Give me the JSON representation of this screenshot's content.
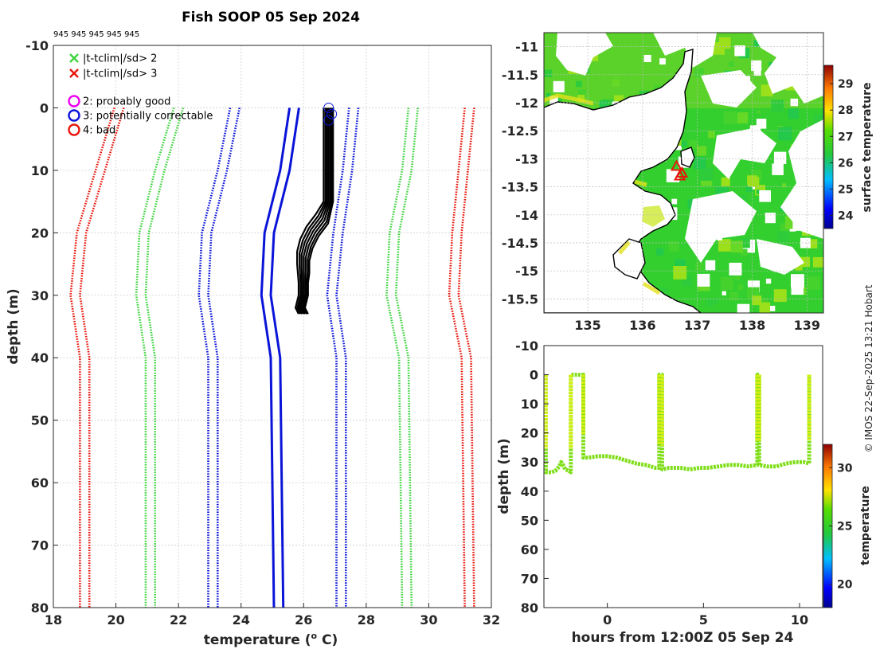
{
  "title": "Fish SOOP 05 Sep 2024",
  "probe_ids": "945 945 945 945 945",
  "copyright": "© IMOS 22-Sep-2025 13:21 Hobart",
  "colors": {
    "red": "#e8150a",
    "green": "#3cd43c",
    "blue": "#0a14d8",
    "black": "#000000",
    "magenta": "#ee00ee"
  },
  "legend": [
    {
      "marker": "x",
      "color": "#3cd43c",
      "label": "|t-tclim|/sd> 2"
    },
    {
      "marker": "x",
      "color": "#e8150a",
      "label": "|t-tclim|/sd> 3"
    },
    {
      "marker": "o",
      "color": "#ee00ee",
      "label": "2: probably good"
    },
    {
      "marker": "o",
      "color": "#0a14d8",
      "label": "3: potentially correctable"
    },
    {
      "marker": "o",
      "color": "#e8150a",
      "label": "4: bad"
    }
  ],
  "chart_data": [
    {
      "id": "profile",
      "type": "line",
      "title": "Fish SOOP 05 Sep 2024",
      "xlabel": "temperature (° C)",
      "ylabel": "depth (m)",
      "xlim": [
        18,
        32
      ],
      "ylim": [
        80,
        -10
      ],
      "xticks": [
        "18",
        "20",
        "22",
        "24",
        "26",
        "28",
        "30",
        "32"
      ],
      "yticks": [
        "-10",
        "0",
        "10",
        "20",
        "30",
        "40",
        "50",
        "60",
        "70",
        "80"
      ],
      "grid": true,
      "depth": [
        0,
        10,
        20,
        30,
        40,
        80
      ],
      "climatology": [
        {
          "name": "-3sd",
          "color": "#e8150a",
          "style": "dotted",
          "values": [
            20.1,
            19.5,
            18.9,
            18.7,
            19.0,
            19.0
          ]
        },
        {
          "name": "-2sd",
          "color": "#3cd43c",
          "style": "dotted",
          "values": [
            22.0,
            21.4,
            20.9,
            20.8,
            21.1,
            21.1
          ]
        },
        {
          "name": "-1sd",
          "color": "#0a14d8",
          "style": "dotted",
          "values": [
            23.8,
            23.4,
            22.9,
            22.8,
            23.1,
            23.1
          ]
        },
        {
          "name": "mean",
          "color": "#0a14d8",
          "style": "solid",
          "values": [
            25.7,
            25.4,
            24.9,
            24.8,
            25.1,
            25.2
          ]
        },
        {
          "name": "+1sd",
          "color": "#0a14d8",
          "style": "dotted",
          "values": [
            27.6,
            27.4,
            27.1,
            26.9,
            27.2,
            27.2
          ]
        },
        {
          "name": "+2sd",
          "color": "#3cd43c",
          "style": "dotted",
          "values": [
            29.5,
            29.3,
            28.9,
            28.8,
            29.2,
            29.3
          ]
        },
        {
          "name": "+3sd",
          "color": "#e8150a",
          "style": "dotted",
          "values": [
            31.3,
            31.1,
            30.9,
            30.8,
            31.2,
            31.3
          ]
        }
      ],
      "observed": {
        "color": "#000000",
        "depth": [
          0,
          5,
          10,
          15,
          17,
          19,
          21,
          23,
          25,
          28,
          30,
          32,
          33
        ],
        "values": [
          26.8,
          26.8,
          26.8,
          26.8,
          26.6,
          26.3,
          26.1,
          26.0,
          26.0,
          26.0,
          26.0,
          25.9,
          26.0
        ]
      },
      "flag_markers": [
        {
          "temperature": 26.8,
          "depth": 0,
          "flag": 3
        },
        {
          "temperature": 26.9,
          "depth": 1,
          "flag": 3
        },
        {
          "temperature": 26.8,
          "depth": 2,
          "flag": 3
        }
      ]
    },
    {
      "id": "sst_map",
      "type": "heatmap",
      "colorbar_label": "surface temperature",
      "xticks": [
        "135",
        "136",
        "137",
        "138",
        "139"
      ],
      "yticks": [
        "-11",
        "-11.5",
        "-12",
        "-12.5",
        "-13",
        "-13.5",
        "-14",
        "-14.5",
        "-15",
        "-15.5"
      ],
      "xlim": [
        134.2,
        139.3
      ],
      "ylim": [
        -15.75,
        -10.75
      ],
      "colorbar_ticks": [
        "24",
        "25",
        "26",
        "27",
        "28",
        "29"
      ],
      "clim": [
        23.5,
        29.7
      ],
      "track_markers": [
        {
          "lon": 136.62,
          "lat": -13.13
        },
        {
          "lon": 136.72,
          "lat": -13.25
        },
        {
          "lon": 136.68,
          "lat": -13.3
        }
      ]
    },
    {
      "id": "timeseries",
      "type": "scatter",
      "xlabel": "hours from 12:00Z 05 Sep 24",
      "ylabel": "depth (m)",
      "colorbar_label": "temperature",
      "xticks": [
        "0",
        "5",
        "10"
      ],
      "yticks": [
        "-10",
        "0",
        "10",
        "20",
        "30",
        "40",
        "50",
        "60",
        "70",
        "80"
      ],
      "xlim": [
        -3.3,
        11.2
      ],
      "ylim": [
        80,
        -10
      ],
      "colorbar_ticks": [
        "20",
        "25",
        "30"
      ],
      "clim": [
        18,
        32
      ],
      "trace": [
        [
          -3.2,
          0
        ],
        [
          -3.2,
          33.5
        ],
        [
          -2.9,
          33.5
        ],
        [
          -2.7,
          33.0
        ],
        [
          -2.5,
          31.5
        ],
        [
          -2.4,
          30.0
        ],
        [
          -2.3,
          31.0
        ],
        [
          -2.2,
          32.5
        ],
        [
          -2.0,
          33.0
        ],
        [
          -1.9,
          33.5
        ],
        [
          -1.9,
          0
        ],
        [
          -1.25,
          0
        ],
        [
          -1.25,
          28.5
        ],
        [
          -1.0,
          28.5
        ],
        [
          -0.5,
          28.0
        ],
        [
          0.0,
          28.0
        ],
        [
          0.5,
          28.5
        ],
        [
          1.0,
          29.5
        ],
        [
          1.5,
          30.5
        ],
        [
          2.0,
          31.0
        ],
        [
          2.5,
          32.0
        ],
        [
          2.7,
          32.0
        ],
        [
          2.7,
          0
        ],
        [
          2.85,
          0
        ],
        [
          2.85,
          32.5
        ],
        [
          3.2,
          32.0
        ],
        [
          3.8,
          32.0
        ],
        [
          4.3,
          32.5
        ],
        [
          4.8,
          32.0
        ],
        [
          5.2,
          32.0
        ],
        [
          5.8,
          31.5
        ],
        [
          6.3,
          31.0
        ],
        [
          6.8,
          31.0
        ],
        [
          7.3,
          31.5
        ],
        [
          7.8,
          31.0
        ],
        [
          7.8,
          0
        ],
        [
          7.9,
          0
        ],
        [
          7.9,
          31.0
        ],
        [
          8.3,
          31.5
        ],
        [
          8.8,
          31.5
        ],
        [
          9.3,
          30.5
        ],
        [
          9.8,
          30.0
        ],
        [
          10.2,
          30.0
        ],
        [
          10.5,
          30.5
        ],
        [
          10.5,
          0
        ]
      ]
    }
  ]
}
